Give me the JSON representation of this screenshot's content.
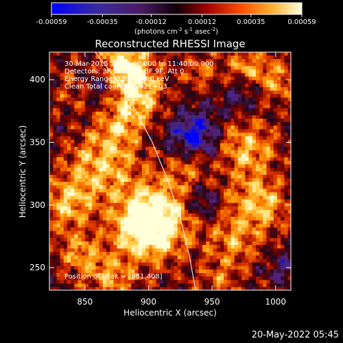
{
  "chart_data": {
    "type": "heatmap",
    "title": "Reconstructed RHESSI Image",
    "xlabel": "Heliocentric X (arcsec)",
    "ylabel": "Heliocentric Y (arcsec)",
    "xlim": [
      822,
      1012
    ],
    "ylim": [
      232,
      422
    ],
    "xticks": [
      850,
      900,
      950,
      1000
    ],
    "yticks": [
      250,
      300,
      350,
      400
    ],
    "xtick_labels": [
      "850",
      "900",
      "950",
      "1000"
    ],
    "ytick_labels": [
      "250",
      "300",
      "350",
      "400"
    ],
    "colorbar": {
      "min": -0.00059,
      "max": 0.00059,
      "tick_labels": [
        "-0.00059",
        "-0.00035",
        "-0.00012",
        "0.00012",
        "0.00035",
        "0.00059"
      ],
      "tick_values": [
        -0.00059,
        -0.00035,
        -0.00012,
        0.00012,
        0.00035,
        0.00059
      ],
      "units_label_parts": [
        "(photons cm",
        "-2",
        " s",
        "-1",
        " asec",
        "-2",
        ")"
      ]
    },
    "annotations": [
      "30-Mar-2015 11:34:00.000 to 11:40:00.000",
      "Detectors: 3F 5F 6F 7F 8F 9F, Att 0",
      "Energy Range: 12.0 - 25.0 keV",
      "Clean     Total counts=6.42E+03"
    ],
    "peak_label": "Position of Peak = [881,408]",
    "peak_position": [
      881,
      408
    ],
    "limb_curve": [
      [
        858,
        422
      ],
      [
        875,
        400
      ],
      [
        890,
        375
      ],
      [
        903,
        350
      ],
      [
        915,
        320
      ],
      [
        925,
        290
      ],
      [
        932,
        260
      ],
      [
        937,
        232
      ]
    ],
    "footer_date": "20-May-2022 05:45",
    "colors": {
      "background": "#000000",
      "colormap": [
        "#0000ff",
        "#3e2a8c",
        "#5a1e6e",
        "#1e0818",
        "#6e0000",
        "#d83000",
        "#ff8c00",
        "#ffd050",
        "#ffffd8"
      ]
    }
  }
}
